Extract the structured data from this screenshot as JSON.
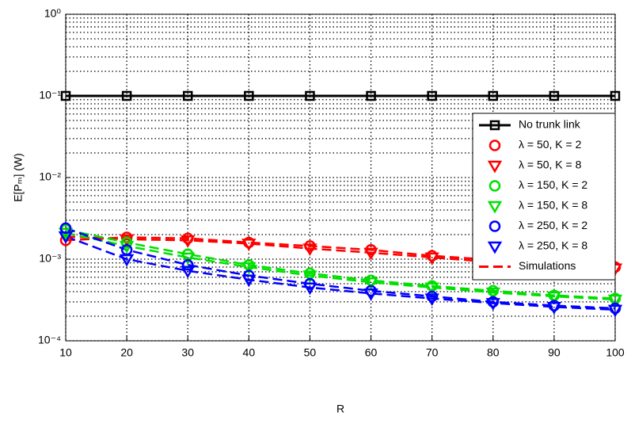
{
  "chart_data": {
    "type": "line",
    "xlabel": "R",
    "ylabel": "E[Pₘ] (W)",
    "log_y": true,
    "grid": true,
    "minor_grid": true,
    "legend": "upper right",
    "x": [
      10,
      20,
      30,
      40,
      50,
      60,
      70,
      80,
      90,
      100
    ],
    "xlim": [
      10,
      100
    ],
    "xticks": [
      10,
      20,
      30,
      40,
      50,
      60,
      70,
      80,
      90,
      100
    ],
    "ylim": [
      0.0001,
      1
    ],
    "yticks": [
      {
        "value": 0.0001,
        "label": "10⁻⁴"
      },
      {
        "value": 0.001,
        "label": "10⁻³"
      },
      {
        "value": 0.01,
        "label": "10⁻²"
      },
      {
        "value": 0.1,
        "label": "10⁻¹"
      },
      {
        "value": 1,
        "label": "10⁰"
      }
    ],
    "series": [
      {
        "name": "No trunk link",
        "color": "#000000",
        "marker": "square",
        "line": "solid",
        "values": [
          0.1,
          0.1,
          0.1,
          0.1,
          0.1,
          0.1,
          0.1,
          0.1,
          0.1,
          0.1
        ]
      },
      {
        "name": "λ = 50, K = 2",
        "color": "#ff0000",
        "marker": "circle",
        "line": "dashed",
        "values": [
          0.0017,
          0.00185,
          0.0018,
          0.0016,
          0.00145,
          0.0013,
          0.0011,
          0.00098,
          0.00088,
          0.0008
        ]
      },
      {
        "name": "λ = 50, K = 8",
        "color": "#ff0000",
        "marker": "triangle",
        "line": "dashed",
        "values": [
          0.0019,
          0.00175,
          0.0017,
          0.00155,
          0.00135,
          0.0012,
          0.00105,
          0.00092,
          0.00082,
          0.00077
        ]
      },
      {
        "name": "λ = 150, K = 2",
        "color": "#00e000",
        "marker": "circle",
        "line": "dashed",
        "values": [
          0.0023,
          0.0016,
          0.00115,
          0.00085,
          0.00067,
          0.00055,
          0.00047,
          0.00041,
          0.00036,
          0.00033
        ]
      },
      {
        "name": "λ = 150, K = 8",
        "color": "#00e000",
        "marker": "triangle",
        "line": "dashed",
        "values": [
          0.0021,
          0.00145,
          0.00105,
          0.0008,
          0.00063,
          0.00052,
          0.00045,
          0.00039,
          0.00035,
          0.00032
        ]
      },
      {
        "name": "λ = 250, K = 2",
        "color": "#0000ff",
        "marker": "circle",
        "line": "dashed",
        "values": [
          0.0024,
          0.0013,
          0.00085,
          0.00063,
          0.0005,
          0.00041,
          0.00035,
          0.0003,
          0.00027,
          0.00025
        ]
      },
      {
        "name": "λ = 250, K = 8",
        "color": "#0000ff",
        "marker": "triangle",
        "line": "dashed",
        "values": [
          0.0019,
          0.001,
          0.00072,
          0.00056,
          0.00045,
          0.00038,
          0.00033,
          0.00029,
          0.00026,
          0.00024
        ]
      }
    ],
    "legend_extra": {
      "name": "Simulations",
      "color": "#ff0000",
      "line": "dashed"
    }
  }
}
